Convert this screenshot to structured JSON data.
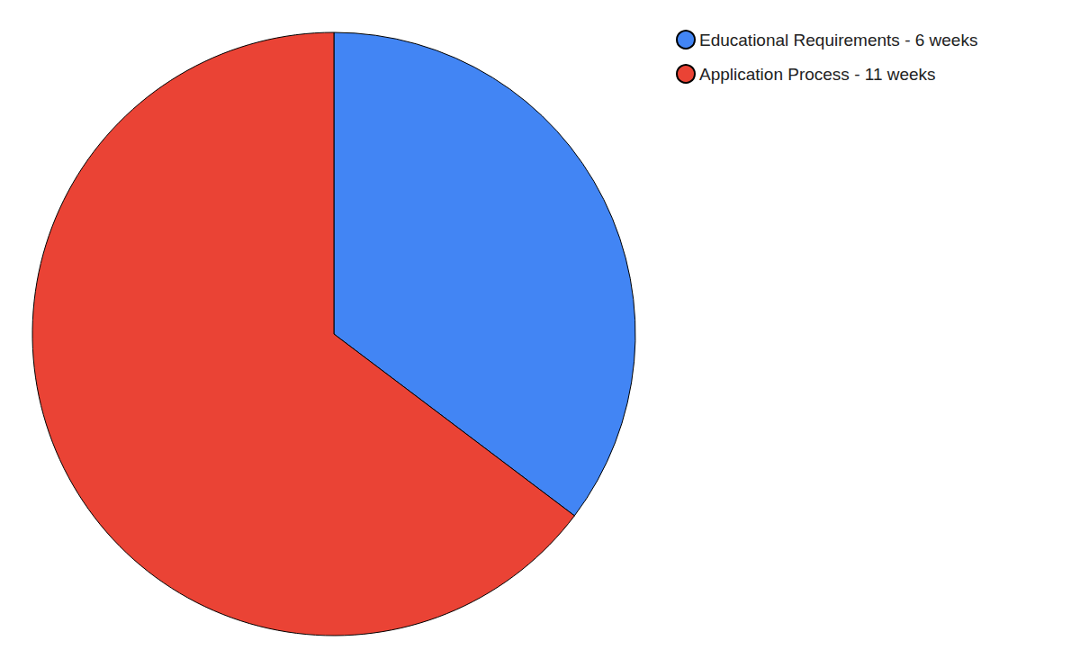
{
  "chart_data": {
    "type": "pie",
    "categories": [
      "Educational Requirements - 6 weeks",
      "Application Process - 11 weeks"
    ],
    "values": [
      6,
      11
    ],
    "colors": [
      "#4285f4",
      "#ea4335"
    ],
    "legend": "top-right"
  }
}
